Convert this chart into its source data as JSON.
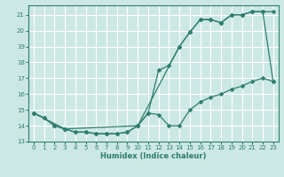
{
  "xlabel": "Humidex (Indice chaleur)",
  "bg_color": "#cce8e4",
  "grid_color": "#ffffff",
  "line_color": "#2e7d6e",
  "xlim": [
    -0.5,
    23.5
  ],
  "ylim": [
    13.0,
    21.6
  ],
  "yticks": [
    13,
    14,
    15,
    16,
    17,
    18,
    19,
    20,
    21
  ],
  "xticks": [
    0,
    1,
    2,
    3,
    4,
    5,
    6,
    7,
    8,
    9,
    10,
    11,
    12,
    13,
    14,
    15,
    16,
    17,
    18,
    19,
    20,
    21,
    22,
    23
  ],
  "line1_x": [
    0,
    1,
    2,
    3,
    4,
    5,
    6,
    7,
    8,
    9,
    10,
    11,
    12,
    13,
    14,
    15,
    16,
    17,
    18,
    19,
    20,
    21,
    22,
    23
  ],
  "line1_y": [
    14.8,
    14.5,
    14.0,
    13.8,
    13.6,
    13.6,
    13.5,
    13.5,
    13.5,
    13.6,
    14.0,
    14.8,
    14.7,
    14.0,
    14.0,
    15.0,
    15.5,
    15.8,
    16.0,
    16.3,
    16.5,
    16.8,
    17.0,
    16.8
  ],
  "line2_x": [
    0,
    1,
    2,
    3,
    4,
    5,
    6,
    7,
    8,
    9,
    10,
    11,
    12,
    13,
    14,
    15,
    16,
    17,
    18,
    19,
    20,
    21,
    22,
    23
  ],
  "line2_y": [
    14.8,
    14.5,
    14.0,
    13.8,
    13.6,
    13.6,
    13.5,
    13.5,
    13.5,
    13.6,
    14.0,
    14.8,
    17.5,
    17.8,
    19.0,
    19.9,
    20.7,
    20.7,
    20.5,
    21.0,
    21.0,
    21.2,
    21.2,
    21.2
  ],
  "line3_x": [
    0,
    3,
    10,
    14,
    15,
    16,
    17,
    18,
    19,
    20,
    21,
    22,
    23
  ],
  "line3_y": [
    14.8,
    13.8,
    14.0,
    19.0,
    19.9,
    20.7,
    20.7,
    20.5,
    21.0,
    21.0,
    21.2,
    21.2,
    16.8
  ]
}
